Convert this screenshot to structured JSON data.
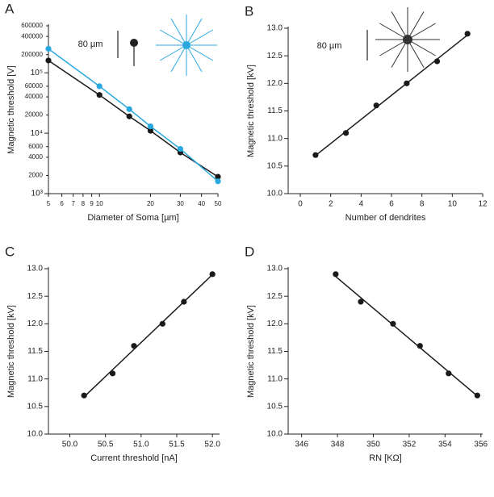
{
  "chart_data": [
    {
      "type": "line",
      "panel_label": "A",
      "xlabel": "Diameter of Soma [µm]",
      "ylabel": "Magnetic threshold [V]",
      "xscale": "log",
      "yscale": "log",
      "annotation": "80 µm",
      "x": [
        5,
        10,
        15,
        20,
        30,
        50
      ],
      "series": [
        {
          "color": "#1a1a1a",
          "values": [
            160000,
            43000,
            19000,
            11000,
            4800,
            1900
          ]
        },
        {
          "color": "#29a8e0",
          "values": [
            250000,
            60000,
            25000,
            13000,
            5500,
            1600
          ]
        }
      ],
      "xlim": [
        5,
        50
      ],
      "ylim": [
        1000,
        600000
      ],
      "xticks": [
        5,
        6,
        7,
        8,
        9,
        10,
        20,
        30,
        40,
        50
      ],
      "yticks": [
        {
          "value": 1000,
          "label": "10³"
        },
        2000,
        4000,
        6000,
        {
          "value": 10000,
          "label": "10⁴"
        },
        20000,
        40000,
        60000,
        {
          "value": 100000,
          "label": "10⁵"
        },
        200000,
        400000,
        600000
      ],
      "yticklabels_short": true
    },
    {
      "type": "scatter",
      "panel_label": "B",
      "xlabel": "Number of dendrites",
      "ylabel": "Magnetic threshold [kV]",
      "annotation": "80 µm",
      "fit": true,
      "x": [
        1,
        3,
        5,
        7,
        9,
        11
      ],
      "series": [
        {
          "color": "#1a1a1a",
          "values": [
            10.7,
            11.1,
            11.6,
            12.0,
            12.4,
            12.9
          ]
        }
      ],
      "xlim": [
        -0.8,
        12
      ],
      "ylim": [
        10,
        13
      ],
      "xticks": [
        0,
        2,
        4,
        6,
        8,
        10,
        12
      ],
      "yticks": [
        {
          "value": 10,
          "label": "10.0"
        },
        {
          "value": 10.5,
          "label": "10.5"
        },
        {
          "value": 11,
          "label": "11.0"
        },
        {
          "value": 11.5,
          "label": "11.5"
        },
        {
          "value": 12,
          "label": "12.0"
        },
        {
          "value": 12.5,
          "label": "12.5"
        },
        {
          "value": 13,
          "label": "13.0"
        }
      ]
    },
    {
      "type": "scatter",
      "panel_label": "C",
      "xlabel": "Current threshold [nA]",
      "ylabel": "Magnetic threshold [kV]",
      "fit": true,
      "x": [
        50.2,
        50.6,
        50.9,
        51.3,
        51.6,
        52.0
      ],
      "series": [
        {
          "color": "#1a1a1a",
          "values": [
            10.7,
            11.1,
            11.6,
            12.0,
            12.4,
            12.9
          ]
        }
      ],
      "xlim": [
        49.7,
        52.1
      ],
      "ylim": [
        10,
        13
      ],
      "xticks": [
        {
          "value": 50,
          "label": "50.0"
        },
        {
          "value": 50.5,
          "label": "50.5"
        },
        {
          "value": 51,
          "label": "51.0"
        },
        {
          "value": 51.5,
          "label": "51.5"
        },
        {
          "value": 52,
          "label": "52.0"
        }
      ],
      "yticks": [
        {
          "value": 10,
          "label": "10.0"
        },
        {
          "value": 10.5,
          "label": "10.5"
        },
        {
          "value": 11,
          "label": "11.0"
        },
        {
          "value": 11.5,
          "label": "11.5"
        },
        {
          "value": 12,
          "label": "12.0"
        },
        {
          "value": 12.5,
          "label": "12.5"
        },
        {
          "value": 13,
          "label": "13.0"
        }
      ]
    },
    {
      "type": "scatter",
      "panel_label": "D",
      "xlabel": "RN [KΩ]",
      "ylabel": "Magnetic threshold [kV]",
      "fit": true,
      "x": [
        355.8,
        354.2,
        352.6,
        351.1,
        349.3,
        347.9
      ],
      "series": [
        {
          "color": "#1a1a1a",
          "values": [
            10.7,
            11.1,
            11.6,
            12.0,
            12.4,
            12.9
          ]
        }
      ],
      "xlim": [
        345.25,
        356.1
      ],
      "ylim": [
        10,
        13
      ],
      "xticks": [
        346,
        348,
        350,
        352,
        354,
        356
      ],
      "yticks": [
        {
          "value": 10,
          "label": "10.0"
        },
        {
          "value": 10.5,
          "label": "10.5"
        },
        {
          "value": 11,
          "label": "11.0"
        },
        {
          "value": 11.5,
          "label": "11.5"
        },
        {
          "value": 12,
          "label": "12.0"
        },
        {
          "value": 12.5,
          "label": "12.5"
        },
        {
          "value": 13,
          "label": "13.0"
        }
      ]
    }
  ]
}
